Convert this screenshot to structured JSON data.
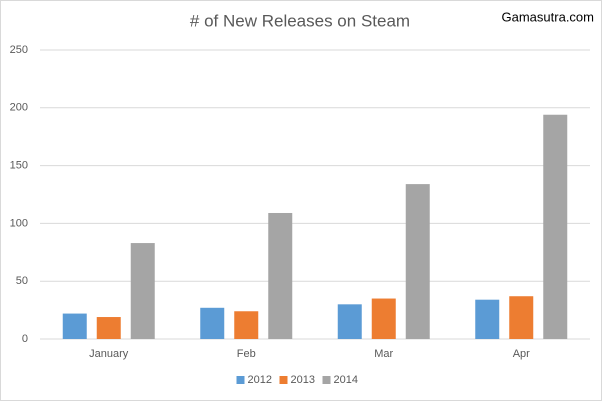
{
  "chart_data": {
    "type": "bar",
    "title": "# of New Releases on Steam",
    "annotation": "Gamasutra.com",
    "categories": [
      "January",
      "Feb",
      "Mar",
      "Apr"
    ],
    "series": [
      {
        "name": "2012",
        "color": "#5b9bd5",
        "values": [
          22,
          27,
          30,
          34
        ]
      },
      {
        "name": "2013",
        "color": "#ed7d31",
        "values": [
          19,
          24,
          35,
          37
        ]
      },
      {
        "name": "2014",
        "color": "#a5a5a5",
        "values": [
          83,
          109,
          134,
          194
        ]
      }
    ],
    "ylim": [
      0,
      250
    ],
    "yticks": [
      0,
      50,
      100,
      150,
      200,
      250
    ],
    "grid": true,
    "legend": "bottom"
  }
}
